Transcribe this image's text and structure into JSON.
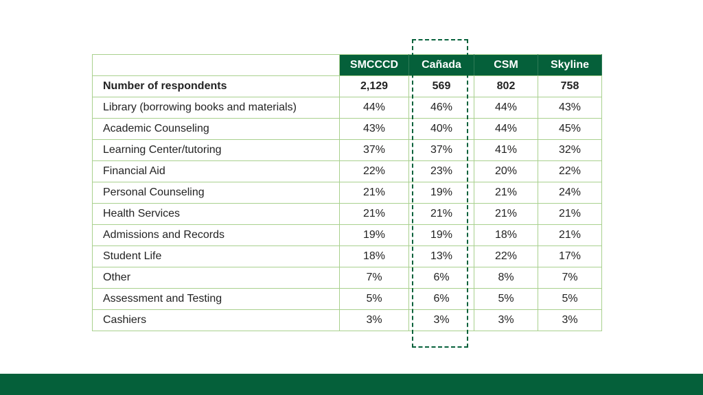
{
  "chart_data": {
    "type": "table",
    "columns": [
      "SMCCCD",
      "Cañada",
      "CSM",
      "Skyline"
    ],
    "highlight_column": "Cañada",
    "colors": {
      "header_bg": "#05603a",
      "grid": "#a8d08d",
      "highlight": "#05603a"
    },
    "rows": [
      {
        "label": "Number of respondents",
        "bold": true,
        "values": [
          "2,129",
          "569",
          "802",
          "758"
        ]
      },
      {
        "label": "Library (borrowing books and materials)",
        "values": [
          "44%",
          "46%",
          "44%",
          "43%"
        ]
      },
      {
        "label": "Academic Counseling",
        "values": [
          "43%",
          "40%",
          "44%",
          "45%"
        ]
      },
      {
        "label": "Learning Center/tutoring",
        "values": [
          "37%",
          "37%",
          "41%",
          "32%"
        ]
      },
      {
        "label": "Financial Aid",
        "values": [
          "22%",
          "23%",
          "20%",
          "22%"
        ]
      },
      {
        "label": "Personal Counseling",
        "values": [
          "21%",
          "19%",
          "21%",
          "24%"
        ]
      },
      {
        "label": "Health Services",
        "values": [
          "21%",
          "21%",
          "21%",
          "21%"
        ]
      },
      {
        "label": "Admissions and Records",
        "values": [
          "19%",
          "19%",
          "18%",
          "21%"
        ]
      },
      {
        "label": "Student Life",
        "values": [
          "18%",
          "13%",
          "22%",
          "17%"
        ]
      },
      {
        "label": "Other",
        "values": [
          "7%",
          "6%",
          "8%",
          "7%"
        ]
      },
      {
        "label": "Assessment and Testing",
        "values": [
          "5%",
          "6%",
          "5%",
          "5%"
        ]
      },
      {
        "label": "Cashiers",
        "values": [
          "3%",
          "3%",
          "3%",
          "3%"
        ]
      }
    ]
  }
}
